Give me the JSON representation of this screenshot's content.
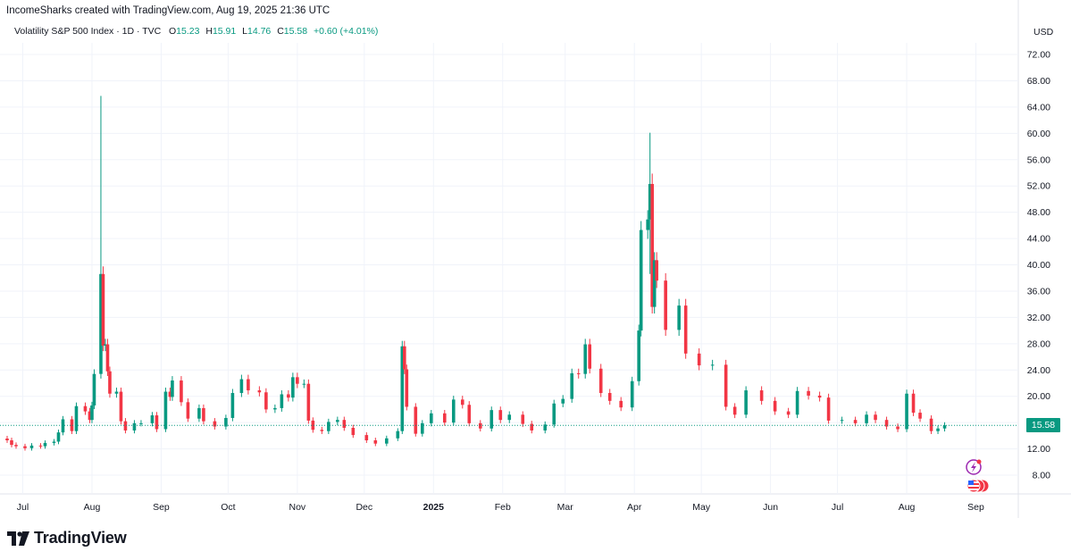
{
  "header": {
    "credit": "IncomeSharks created with TradingView.com, Aug 19, 2025 21:36 UTC",
    "symbol": "Volatility S&P 500 Index · 1D · TVC",
    "ohlc": {
      "o_label": "O",
      "o": "15.23",
      "h_label": "H",
      "h": "15.91",
      "l_label": "L",
      "l": "14.76",
      "c_label": "C",
      "c": "15.58",
      "change": "+0.60 (+4.01%)"
    },
    "currency": "USD"
  },
  "brand": {
    "name": "TradingView"
  },
  "colors": {
    "up": "#089981",
    "down": "#f23645",
    "grid": "#f0f3fa",
    "axis_text": "#131722"
  },
  "chart_data": {
    "type": "candlestick",
    "title": "Volatility S&P 500 Index · 1D · TVC",
    "ylabel": "USD",
    "ylim": [
      6,
      75
    ],
    "last_price": 15.58,
    "y_ticks": [
      8,
      12,
      16,
      20,
      24,
      28,
      32,
      36,
      40,
      44,
      48,
      52,
      56,
      60,
      64,
      68,
      72
    ],
    "y_tick_labels": [
      "8.00",
      "12.00",
      "16.00",
      "20.00",
      "24.00",
      "28.00",
      "32.00",
      "36.00",
      "40.00",
      "44.00",
      "48.00",
      "52.00",
      "56.00",
      "60.00",
      "64.00",
      "68.00",
      "72.00"
    ],
    "x_labels": [
      {
        "label": "Jul",
        "date": "2024-07-01",
        "bold": false
      },
      {
        "label": "Aug",
        "date": "2024-08-01",
        "bold": false
      },
      {
        "label": "Sep",
        "date": "2024-09-01",
        "bold": false
      },
      {
        "label": "Oct",
        "date": "2024-10-01",
        "bold": false
      },
      {
        "label": "Nov",
        "date": "2024-11-01",
        "bold": false
      },
      {
        "label": "Dec",
        "date": "2024-12-01",
        "bold": false
      },
      {
        "label": "2025",
        "date": "2025-01-01",
        "bold": true
      },
      {
        "label": "Feb",
        "date": "2025-02-01",
        "bold": false
      },
      {
        "label": "Mar",
        "date": "2025-03-01",
        "bold": false
      },
      {
        "label": "Apr",
        "date": "2025-04-01",
        "bold": false
      },
      {
        "label": "May",
        "date": "2025-05-01",
        "bold": false
      },
      {
        "label": "Jun",
        "date": "2025-06-01",
        "bold": false
      },
      {
        "label": "Jul",
        "date": "2025-07-01",
        "bold": false
      },
      {
        "label": "Aug",
        "date": "2025-08-01",
        "bold": false
      },
      {
        "label": "Sep",
        "date": "2025-09-01",
        "bold": false
      }
    ],
    "x_range": [
      "2024-06-24",
      "2025-09-20"
    ],
    "closes": [
      {
        "date": "2024-06-24",
        "c": 13.3
      },
      {
        "date": "2024-06-26",
        "c": 12.6
      },
      {
        "date": "2024-06-28",
        "c": 12.4
      },
      {
        "date": "2024-07-02",
        "c": 12.1
      },
      {
        "date": "2024-07-05",
        "c": 12.5
      },
      {
        "date": "2024-07-09",
        "c": 12.4
      },
      {
        "date": "2024-07-11",
        "c": 12.9
      },
      {
        "date": "2024-07-15",
        "c": 13.1
      },
      {
        "date": "2024-07-17",
        "c": 14.5
      },
      {
        "date": "2024-07-19",
        "c": 16.5
      },
      {
        "date": "2024-07-23",
        "c": 14.7
      },
      {
        "date": "2024-07-25",
        "c": 18.5
      },
      {
        "date": "2024-07-29",
        "c": 17.7
      },
      {
        "date": "2024-07-31",
        "c": 16.4
      },
      {
        "date": "2024-08-01",
        "c": 18.6
      },
      {
        "date": "2024-08-02",
        "c": 23.4
      },
      {
        "date": "2024-08-05",
        "c": 38.6
      },
      {
        "date": "2024-08-06",
        "c": 27.7
      },
      {
        "date": "2024-08-07",
        "c": 27.9
      },
      {
        "date": "2024-08-08",
        "c": 23.8
      },
      {
        "date": "2024-08-09",
        "c": 20.4
      },
      {
        "date": "2024-08-12",
        "c": 20.7
      },
      {
        "date": "2024-08-14",
        "c": 16.2
      },
      {
        "date": "2024-08-16",
        "c": 14.8
      },
      {
        "date": "2024-08-20",
        "c": 15.9
      },
      {
        "date": "2024-08-23",
        "c": 15.9
      },
      {
        "date": "2024-08-28",
        "c": 17.1
      },
      {
        "date": "2024-08-30",
        "c": 15.0
      },
      {
        "date": "2024-09-03",
        "c": 20.7
      },
      {
        "date": "2024-09-05",
        "c": 19.9
      },
      {
        "date": "2024-09-06",
        "c": 22.4
      },
      {
        "date": "2024-09-10",
        "c": 19.1
      },
      {
        "date": "2024-09-13",
        "c": 16.6
      },
      {
        "date": "2024-09-18",
        "c": 18.2
      },
      {
        "date": "2024-09-20",
        "c": 16.2
      },
      {
        "date": "2024-09-25",
        "c": 15.4
      },
      {
        "date": "2024-09-30",
        "c": 16.7
      },
      {
        "date": "2024-10-03",
        "c": 20.5
      },
      {
        "date": "2024-10-07",
        "c": 22.6
      },
      {
        "date": "2024-10-10",
        "c": 20.9
      },
      {
        "date": "2024-10-15",
        "c": 20.6
      },
      {
        "date": "2024-10-18",
        "c": 18.0
      },
      {
        "date": "2024-10-22",
        "c": 18.2
      },
      {
        "date": "2024-10-25",
        "c": 20.3
      },
      {
        "date": "2024-10-28",
        "c": 19.8
      },
      {
        "date": "2024-10-30",
        "c": 22.9
      },
      {
        "date": "2024-11-01",
        "c": 21.9
      },
      {
        "date": "2024-11-04",
        "c": 21.9
      },
      {
        "date": "2024-11-06",
        "c": 16.3
      },
      {
        "date": "2024-11-08",
        "c": 14.9
      },
      {
        "date": "2024-11-12",
        "c": 14.7
      },
      {
        "date": "2024-11-15",
        "c": 16.1
      },
      {
        "date": "2024-11-19",
        "c": 16.4
      },
      {
        "date": "2024-11-22",
        "c": 15.2
      },
      {
        "date": "2024-11-26",
        "c": 14.1
      },
      {
        "date": "2024-12-02",
        "c": 13.3
      },
      {
        "date": "2024-12-06",
        "c": 12.8
      },
      {
        "date": "2024-12-11",
        "c": 13.6
      },
      {
        "date": "2024-12-16",
        "c": 14.7
      },
      {
        "date": "2024-12-18",
        "c": 27.6
      },
      {
        "date": "2024-12-19",
        "c": 24.1
      },
      {
        "date": "2024-12-20",
        "c": 18.4
      },
      {
        "date": "2024-12-24",
        "c": 14.3
      },
      {
        "date": "2024-12-27",
        "c": 15.9
      },
      {
        "date": "2024-12-31",
        "c": 17.4
      },
      {
        "date": "2025-01-06",
        "c": 16.0
      },
      {
        "date": "2025-01-10",
        "c": 19.5
      },
      {
        "date": "2025-01-14",
        "c": 18.7
      },
      {
        "date": "2025-01-17",
        "c": 15.9
      },
      {
        "date": "2025-01-22",
        "c": 15.1
      },
      {
        "date": "2025-01-27",
        "c": 17.9
      },
      {
        "date": "2025-01-31",
        "c": 16.4
      },
      {
        "date": "2025-02-04",
        "c": 17.2
      },
      {
        "date": "2025-02-10",
        "c": 15.8
      },
      {
        "date": "2025-02-14",
        "c": 14.8
      },
      {
        "date": "2025-02-20",
        "c": 15.7
      },
      {
        "date": "2025-02-24",
        "c": 18.9
      },
      {
        "date": "2025-02-28",
        "c": 19.6
      },
      {
        "date": "2025-03-04",
        "c": 23.5
      },
      {
        "date": "2025-03-07",
        "c": 23.4
      },
      {
        "date": "2025-03-10",
        "c": 27.9
      },
      {
        "date": "2025-03-12",
        "c": 24.2
      },
      {
        "date": "2025-03-17",
        "c": 20.5
      },
      {
        "date": "2025-03-21",
        "c": 19.3
      },
      {
        "date": "2025-03-26",
        "c": 18.3
      },
      {
        "date": "2025-03-31",
        "c": 22.3
      },
      {
        "date": "2025-04-03",
        "c": 30.0
      },
      {
        "date": "2025-04-04",
        "c": 45.3
      },
      {
        "date": "2025-04-07",
        "c": 46.9
      },
      {
        "date": "2025-04-08",
        "c": 52.3
      },
      {
        "date": "2025-04-09",
        "c": 33.6
      },
      {
        "date": "2025-04-10",
        "c": 40.7
      },
      {
        "date": "2025-04-11",
        "c": 37.6
      },
      {
        "date": "2025-04-15",
        "c": 30.1
      },
      {
        "date": "2025-04-21",
        "c": 33.8
      },
      {
        "date": "2025-04-24",
        "c": 26.5
      },
      {
        "date": "2025-04-30",
        "c": 24.7
      },
      {
        "date": "2025-05-06",
        "c": 24.8
      },
      {
        "date": "2025-05-12",
        "c": 18.4
      },
      {
        "date": "2025-05-16",
        "c": 17.2
      },
      {
        "date": "2025-05-21",
        "c": 20.9
      },
      {
        "date": "2025-05-28",
        "c": 19.3
      },
      {
        "date": "2025-06-03",
        "c": 17.7
      },
      {
        "date": "2025-06-09",
        "c": 17.2
      },
      {
        "date": "2025-06-13",
        "c": 20.8
      },
      {
        "date": "2025-06-18",
        "c": 20.1
      },
      {
        "date": "2025-06-23",
        "c": 19.8
      },
      {
        "date": "2025-06-27",
        "c": 16.3
      },
      {
        "date": "2025-07-03",
        "c": 16.4
      },
      {
        "date": "2025-07-09",
        "c": 15.9
      },
      {
        "date": "2025-07-14",
        "c": 17.2
      },
      {
        "date": "2025-07-18",
        "c": 16.4
      },
      {
        "date": "2025-07-23",
        "c": 15.4
      },
      {
        "date": "2025-07-28",
        "c": 15.0
      },
      {
        "date": "2025-08-01",
        "c": 20.4
      },
      {
        "date": "2025-08-04",
        "c": 17.5
      },
      {
        "date": "2025-08-07",
        "c": 16.6
      },
      {
        "date": "2025-08-12",
        "c": 14.7
      },
      {
        "date": "2025-08-15",
        "c": 15.1
      },
      {
        "date": "2025-08-18",
        "c": 15.58
      }
    ],
    "spikes": [
      {
        "date": "2024-08-05",
        "h": 65.7,
        "l": 23.4
      },
      {
        "date": "2025-04-08",
        "h": 60.1,
        "l": 38.6
      },
      {
        "date": "2024-07-24",
        "h": 18.0,
        "l": 10.7
      }
    ],
    "grid": true,
    "legend": "top-left"
  }
}
